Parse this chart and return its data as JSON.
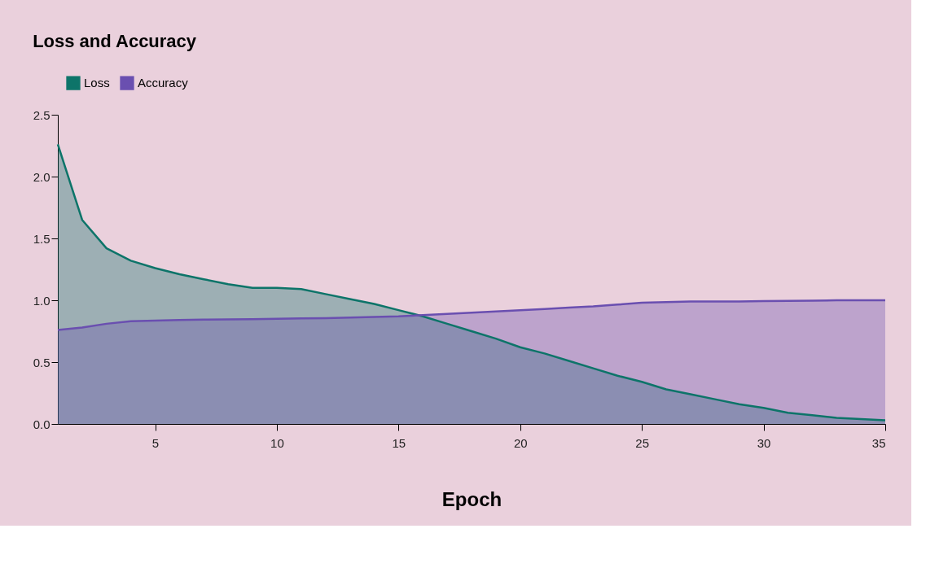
{
  "chart_data": {
    "type": "area",
    "title": "Loss  and Accuracy",
    "xlabel": "Epoch",
    "legend": "top",
    "grid": false,
    "x": [
      1,
      2,
      3,
      4,
      5,
      6,
      7,
      8,
      9,
      10,
      11,
      12,
      13,
      14,
      15,
      16,
      17,
      18,
      19,
      20,
      21,
      22,
      23,
      24,
      25,
      26,
      27,
      28,
      29,
      30,
      31,
      32,
      33,
      34,
      35
    ],
    "xlim": [
      1,
      35
    ],
    "xticks": [
      5,
      10,
      15,
      20,
      25,
      30,
      35
    ],
    "ylim": [
      0,
      2.5
    ],
    "yticks": [
      {
        "value": 0,
        "label": "0.0"
      },
      {
        "value": 0.5,
        "label": "0.5"
      },
      {
        "value": 1,
        "label": "1.0"
      },
      {
        "value": 1.5,
        "label": "1.5"
      },
      {
        "value": 2,
        "label": "2.0"
      },
      {
        "value": 2.5,
        "label": "2.5"
      }
    ],
    "series": [
      {
        "name": "Loss",
        "color": "#0d7469",
        "values": [
          2.26,
          1.65,
          1.42,
          1.32,
          1.26,
          1.21,
          1.17,
          1.13,
          1.1,
          1.1,
          1.09,
          1.05,
          1.01,
          0.97,
          0.92,
          0.87,
          0.81,
          0.75,
          0.69,
          0.62,
          0.57,
          0.51,
          0.45,
          0.39,
          0.34,
          0.28,
          0.24,
          0.2,
          0.16,
          0.13,
          0.09,
          0.07,
          0.05,
          0.04,
          0.03
        ]
      },
      {
        "name": "Accuracy",
        "color": "#6a4fb0",
        "values": [
          0.76,
          0.78,
          0.81,
          0.83,
          0.835,
          0.84,
          0.843,
          0.845,
          0.847,
          0.85,
          0.853,
          0.856,
          0.86,
          0.865,
          0.87,
          0.88,
          0.89,
          0.9,
          0.91,
          0.92,
          0.93,
          0.94,
          0.95,
          0.965,
          0.98,
          0.985,
          0.99,
          0.99,
          0.99,
          0.993,
          0.995,
          0.997,
          1.0,
          1.0,
          1.0
        ]
      }
    ]
  }
}
